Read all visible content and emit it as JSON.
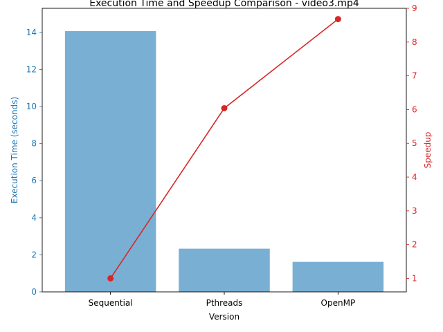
{
  "chart_data": {
    "type": "bar+line",
    "title": "Execution Time and Speedup Comparison - video3.mp4",
    "xlabel": "Version",
    "categories": [
      "Sequential",
      "Pthreads",
      "OpenMP"
    ],
    "left_axis": {
      "label": "Execution Time (seconds)",
      "ylim": [
        0,
        15.3
      ],
      "ticks": [
        "0",
        "2",
        "4",
        "6",
        "8",
        "10",
        "12",
        "14"
      ],
      "color": "#1f77b4"
    },
    "right_axis": {
      "label": "Speedup",
      "ylim": [
        0.6,
        9.0
      ],
      "ticks": [
        "1",
        "2",
        "3",
        "4",
        "5",
        "6",
        "7",
        "8",
        "9"
      ],
      "color": "#d62728"
    },
    "series": [
      {
        "kind": "bar",
        "axis": "left",
        "values": [
          14.07,
          2.33,
          1.62
        ],
        "color": "#7aafd4"
      },
      {
        "kind": "line",
        "axis": "right",
        "values": [
          1.0,
          6.04,
          8.68
        ],
        "color": "#d62728"
      }
    ],
    "grid": false,
    "legend": "none"
  }
}
